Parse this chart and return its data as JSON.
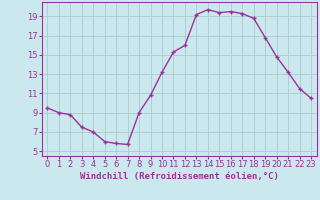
{
  "x": [
    0,
    1,
    2,
    3,
    4,
    5,
    6,
    7,
    8,
    9,
    10,
    11,
    12,
    13,
    14,
    15,
    16,
    17,
    18,
    19,
    20,
    21,
    22,
    23
  ],
  "y": [
    9.5,
    9.0,
    8.8,
    7.5,
    7.0,
    6.0,
    5.8,
    5.7,
    9.0,
    10.8,
    13.2,
    15.3,
    16.0,
    19.2,
    19.7,
    19.4,
    19.5,
    19.3,
    18.8,
    16.8,
    14.8,
    13.2,
    11.5,
    10.5
  ],
  "line_color": "#993399",
  "marker": "+",
  "marker_color": "#993399",
  "bg_color": "#cce8ef",
  "grid_color": "#aacccc",
  "tick_color": "#993399",
  "xlabel": "Windchill (Refroidissement éolien,°C)",
  "xlim": [
    -0.5,
    23.5
  ],
  "ylim": [
    4.5,
    20.5
  ],
  "yticks": [
    5,
    7,
    9,
    11,
    13,
    15,
    17,
    19
  ],
  "xticks": [
    0,
    1,
    2,
    3,
    4,
    5,
    6,
    7,
    8,
    9,
    10,
    11,
    12,
    13,
    14,
    15,
    16,
    17,
    18,
    19,
    20,
    21,
    22,
    23
  ],
  "xlabel_fontsize": 6.5,
  "tick_fontsize": 6.0,
  "linewidth": 1.0,
  "markersize": 3.5
}
